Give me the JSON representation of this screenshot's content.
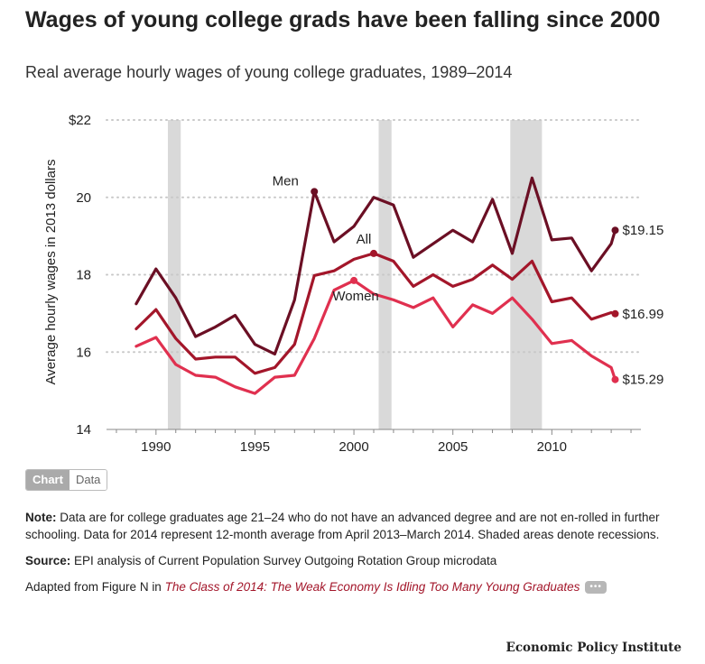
{
  "header": {
    "title": "Wages of young college grads have been falling since 2000",
    "subtitle": "Real average hourly wages of young college graduates, 1989–2014"
  },
  "tabs": {
    "chart_label": "Chart",
    "data_label": "Data"
  },
  "notes": {
    "note_label": "Note:",
    "note_text": "Data are for college graduates age 21–24 who do not have an advanced degree and are not en-rolled in further schooling. Data for 2014 represent 12-month average from April 2013–March 2014. Shaded areas denote recessions.",
    "source_label": "Source:",
    "source_text": "EPI analysis of Current Population Survey Outgoing Rotation Group microdata",
    "adapted_prefix": "Adapted from Figure N in ",
    "adapted_link": "The Class of 2014: The Weak Economy Is Idling Too Many Young Graduates",
    "more_label": "•••"
  },
  "footer": {
    "brand": "Economic Policy Institute"
  },
  "chart_data": {
    "type": "line",
    "title": "Wages of young college grads have been falling since 2000",
    "ylabel": "Average hourly wages in 2013 dollars",
    "xlabel": "",
    "xlim": [
      1987.5,
      2014.5
    ],
    "ylim": [
      14,
      22
    ],
    "grid": true,
    "x_ticks": [
      1990,
      1995,
      2000,
      2005,
      2010
    ],
    "x_tick_labels": [
      "1990",
      "1995",
      "2000",
      "2005",
      "2010"
    ],
    "y_ticks": [
      14,
      16,
      18,
      20,
      22
    ],
    "y_tick_labels": [
      "14",
      "16",
      "18",
      "20",
      "$22"
    ],
    "recessions": [
      [
        1990.6,
        1991.25
      ],
      [
        2001.25,
        2001.9
      ],
      [
        2007.9,
        2009.5
      ]
    ],
    "x": [
      1989,
      1990,
      1991,
      1992,
      1993,
      1994,
      1995,
      1996,
      1997,
      1998,
      1999,
      2000,
      2001,
      2002,
      2003,
      2004,
      2005,
      2006,
      2007,
      2008,
      2009,
      2010,
      2011,
      2012,
      2013,
      2013.2
    ],
    "series": [
      {
        "name": "Men",
        "color": "#6b0f24",
        "values": [
          17.25,
          18.15,
          17.4,
          16.4,
          16.65,
          16.95,
          16.2,
          15.95,
          17.35,
          20.15,
          18.85,
          19.25,
          20.0,
          19.8,
          18.45,
          18.8,
          19.15,
          18.85,
          19.95,
          18.55,
          20.5,
          18.9,
          18.95,
          18.1,
          18.8,
          19.15
        ],
        "end_label": "$19.15",
        "label_x": 1998,
        "label_y": 20.15
      },
      {
        "name": "All",
        "color": "#a3162a",
        "values": [
          16.6,
          17.1,
          16.35,
          15.82,
          15.87,
          15.87,
          15.45,
          15.6,
          16.2,
          17.98,
          18.1,
          18.4,
          18.55,
          18.35,
          17.7,
          18.0,
          17.7,
          17.88,
          18.25,
          17.88,
          18.35,
          17.3,
          17.4,
          16.85,
          17.02,
          16.99
        ],
        "end_label": "$16.99",
        "label_x": 2001,
        "label_y": 18.55
      },
      {
        "name": "Women",
        "color": "#e0304f",
        "values": [
          16.15,
          16.38,
          15.68,
          15.4,
          15.35,
          15.1,
          14.93,
          15.35,
          15.4,
          16.35,
          17.6,
          17.85,
          17.5,
          17.35,
          17.15,
          17.4,
          16.65,
          17.22,
          17.0,
          17.4,
          16.85,
          16.22,
          16.3,
          15.9,
          15.6,
          15.29
        ],
        "end_label": "$15.29",
        "label_x": 2000,
        "label_y": 17.85
      }
    ]
  }
}
